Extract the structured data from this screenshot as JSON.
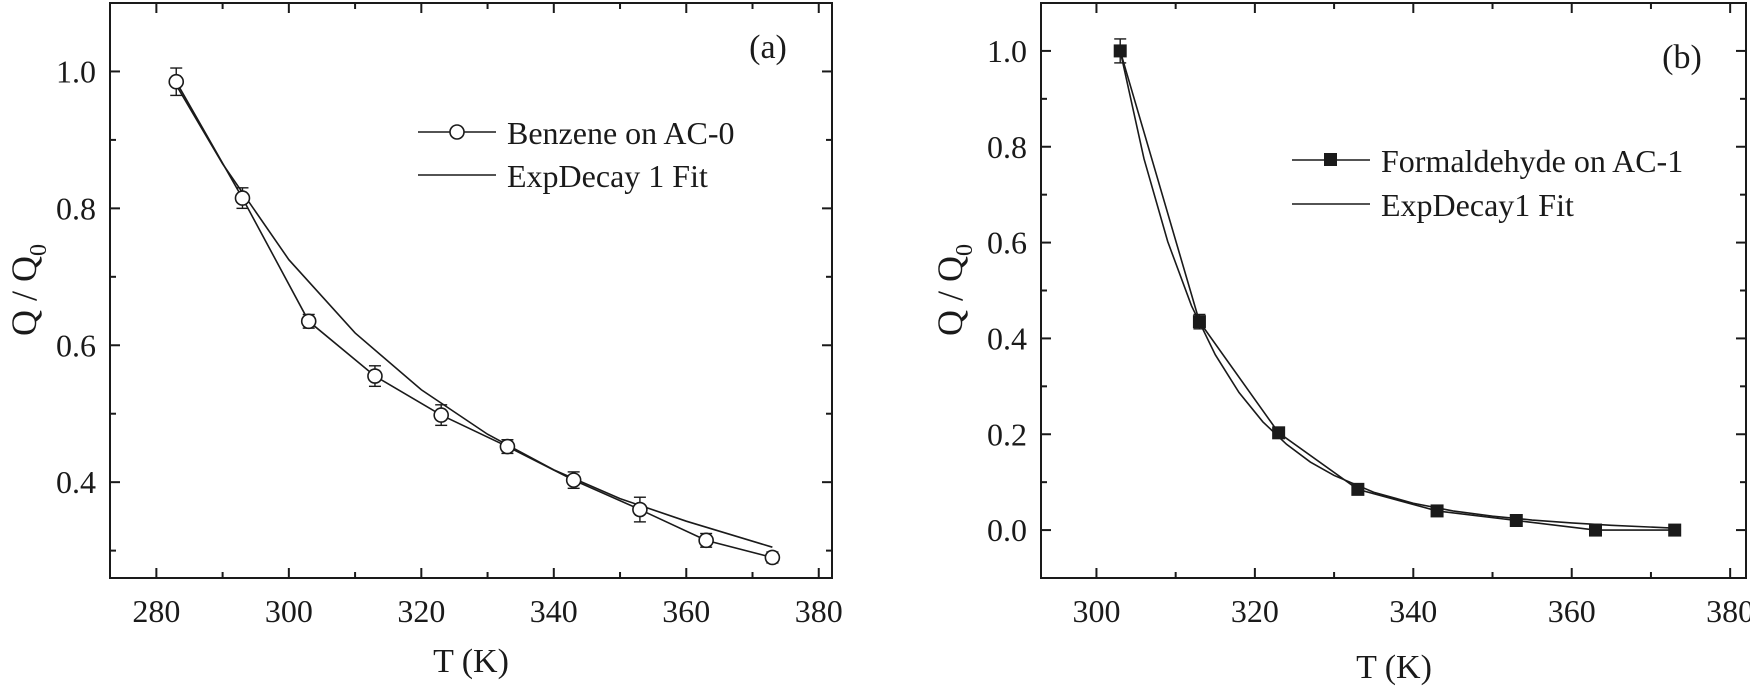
{
  "chart_data": [
    {
      "type": "line",
      "panel_label": "(a)",
      "xlabel": "T (K)",
      "ylabel": "Q / Q",
      "ylabel_sub": "0",
      "xlim": [
        273,
        382
      ],
      "ylim": [
        0.26,
        1.1
      ],
      "xticks": [
        280,
        300,
        320,
        340,
        360,
        380
      ],
      "yticks": [
        0.4,
        0.6,
        0.8,
        1.0
      ],
      "xtick_labels": [
        "280",
        "300",
        "320",
        "340",
        "360",
        "380"
      ],
      "ytick_labels": [
        "0.4",
        "0.6",
        "0.8",
        "1.0"
      ],
      "legend_position": "top-right",
      "series": [
        {
          "name": "Benzene on AC-0",
          "marker": "open-circle",
          "x": [
            283,
            293,
            303,
            313,
            323,
            333,
            343,
            353,
            363,
            373
          ],
          "y": [
            0.985,
            0.815,
            0.635,
            0.555,
            0.498,
            0.452,
            0.403,
            0.36,
            0.315,
            0.29
          ],
          "err": [
            0.02,
            0.015,
            0.01,
            0.015,
            0.015,
            0.01,
            0.012,
            0.018,
            0.01,
            0.008
          ]
        },
        {
          "name": "ExpDecay 1 Fit",
          "marker": "none",
          "x": [
            283,
            290,
            300,
            310,
            320,
            330,
            340,
            350,
            360,
            373
          ],
          "y": [
            0.98,
            0.865,
            0.725,
            0.618,
            0.535,
            0.47,
            0.418,
            0.376,
            0.343,
            0.305
          ]
        }
      ]
    },
    {
      "type": "line",
      "panel_label": "(b)",
      "xlabel": "T (K)",
      "ylabel": "Q / Q",
      "ylabel_sub": "0",
      "xlim": [
        293,
        382
      ],
      "ylim": [
        -0.1,
        1.1
      ],
      "xticks": [
        300,
        320,
        340,
        360,
        380
      ],
      "yticks": [
        0.0,
        0.2,
        0.4,
        0.6,
        0.8,
        1.0
      ],
      "xtick_labels": [
        "300",
        "320",
        "340",
        "360",
        "380"
      ],
      "ytick_labels": [
        "0.0",
        "0.2",
        "0.4",
        "0.6",
        "0.8",
        "1.0"
      ],
      "legend_position": "top-right",
      "series": [
        {
          "name": "Formaldehyde on AC-1",
          "marker": "filled-square",
          "x": [
            303,
            313,
            323,
            333,
            343,
            353,
            363,
            373
          ],
          "y": [
            1.0,
            0.435,
            0.203,
            0.085,
            0.04,
            0.02,
            0.0,
            0.0
          ],
          "err": [
            0.025,
            0.015,
            0.01,
            0.008,
            0.005,
            0.005,
            0.004,
            0.004
          ]
        },
        {
          "name": "ExpDecay1 Fit",
          "marker": "none",
          "x": [
            303,
            306,
            309,
            312,
            315,
            318,
            321,
            324,
            327,
            330,
            335,
            340,
            345,
            350,
            355,
            360,
            365,
            373
          ],
          "y": [
            1.0,
            0.775,
            0.602,
            0.468,
            0.366,
            0.287,
            0.226,
            0.179,
            0.142,
            0.114,
            0.079,
            0.056,
            0.04,
            0.029,
            0.021,
            0.015,
            0.01,
            0.004
          ]
        }
      ]
    }
  ]
}
